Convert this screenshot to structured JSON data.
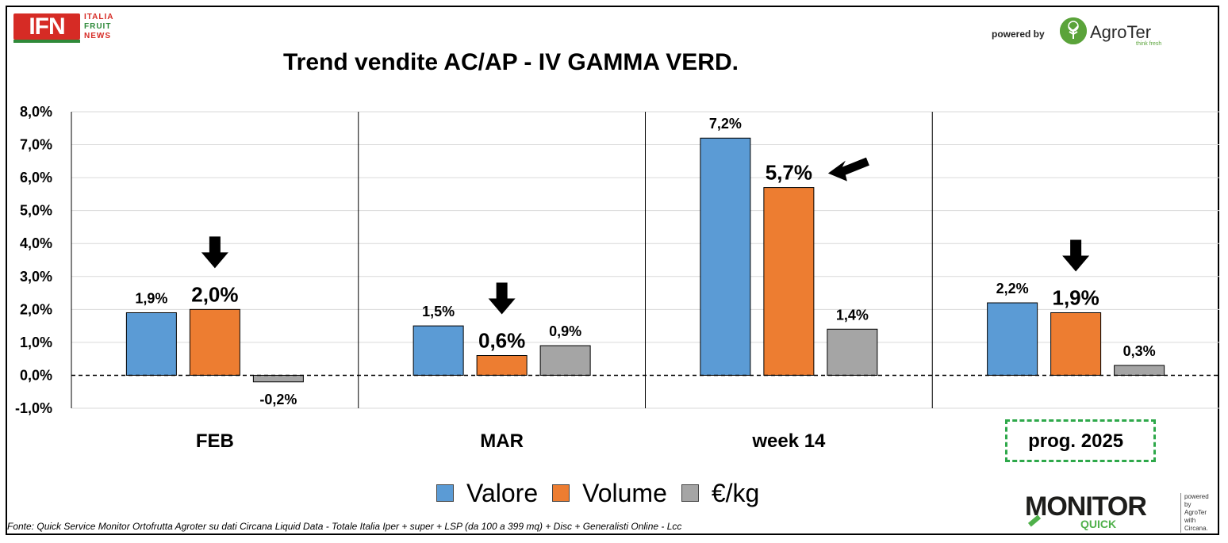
{
  "header": {
    "ifn_logo": {
      "short": "IFN",
      "lines": [
        "ITALIA",
        "FRUIT",
        "NEWS"
      ]
    },
    "powered_by": "powered by",
    "agroter": {
      "name": "AgroTer",
      "tagline": "think fresh"
    }
  },
  "chart_data": {
    "type": "bar",
    "title": "Trend vendite AC/AP - IV GAMMA VERD.",
    "categories": [
      "FEB",
      "MAR",
      "week 14",
      "prog. 2025"
    ],
    "series": [
      {
        "name": "Valore",
        "color": "#5b9bd5",
        "values": [
          1.9,
          1.5,
          7.2,
          2.2
        ],
        "labels": [
          "1,9%",
          "1,5%",
          "7,2%",
          "2,2%"
        ]
      },
      {
        "name": "Volume",
        "color": "#ed7d31",
        "values": [
          2.0,
          0.6,
          5.7,
          1.9
        ],
        "labels": [
          "2,0%",
          "0,6%",
          "5,7%",
          "1,9%"
        ]
      },
      {
        "name": "€/kg",
        "color": "#a5a5a5",
        "values": [
          -0.2,
          0.9,
          1.4,
          0.3
        ],
        "labels": [
          "-0,2%",
          "0,9%",
          "1,4%",
          "0,3%"
        ]
      }
    ],
    "ylim": [
      -1,
      8
    ],
    "yticks": [
      8,
      7,
      6,
      5,
      4,
      3,
      2,
      1,
      0,
      -1
    ],
    "ytick_labels": [
      "8,0%",
      "7,0%",
      "6,0%",
      "5,0%",
      "4,0%",
      "3,0%",
      "2,0%",
      "1,0%",
      "0,0%",
      "-1,0%"
    ],
    "grid": true,
    "legend_position": "bottom",
    "highlighted_series": "Volume",
    "highlighted_category": "prog. 2025",
    "arrow_annotations": [
      "down",
      "down",
      "left",
      "down"
    ]
  },
  "footer": {
    "source": "Fonte: Quick Service Monitor Ortofrutta Agroter su dati Circana Liquid Data - Totale Italia Iper + super + LSP (da 100 a 399 mq) + Disc + Generalisti Online - Lcc",
    "monitor_logo": {
      "word": "MONITOR",
      "sub": "QUICK",
      "side_lines": [
        "powered by",
        "AgroTer",
        "with",
        "Circana."
      ]
    }
  }
}
